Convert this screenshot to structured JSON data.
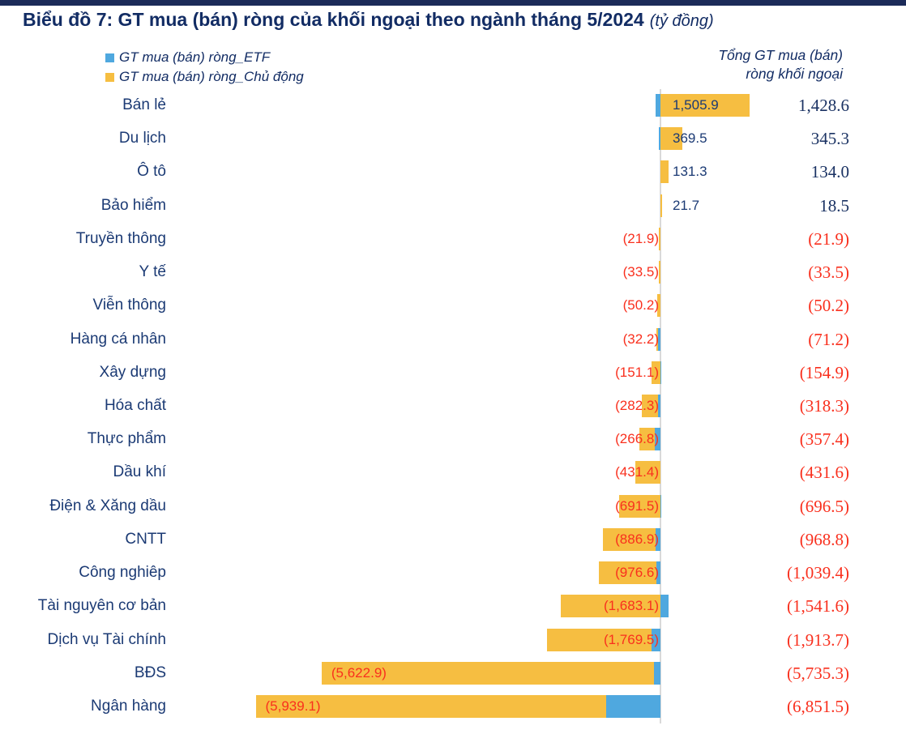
{
  "page": {
    "topbar_color": "#1C2B59"
  },
  "header": {
    "title": "Biểu đồ 7: GT mua (bán) ròng của khối ngoại theo ngành tháng 5/2024",
    "unit_suffix": "(tỷ đồng)"
  },
  "totals_header": {
    "line1": "Tổng GT mua (bán)",
    "line2": "ròng khối ngoại"
  },
  "chart_data": {
    "type": "bar",
    "orientation": "horizontal",
    "stacked": true,
    "value_unit": "tỷ đồng",
    "title": "GT mua (bán) ròng của khối ngoại theo ngành tháng 5/2024",
    "axis": {
      "zero_line": true,
      "gridlines": false,
      "xlim": [
        -7000,
        1700
      ]
    },
    "legend_position": "top-left",
    "categories": [
      "Bán lẻ",
      "Du lịch",
      "Ô tô",
      "Bảo hiểm",
      "Truyền thông",
      "Y tế",
      "Viễn thông",
      "Hàng cá nhân",
      "Xây dựng",
      "Hóa chất",
      "Thực phẩm",
      "Dầu khí",
      "Điện & Xăng dầu",
      "CNTT",
      "Công nghiêp",
      "Tài nguyên cơ bản",
      "Dịch vụ Tài chính",
      "BĐS",
      "Ngân hàng"
    ],
    "series": [
      {
        "name": "GT mua (bán) ròng_ETF",
        "color": "#4FA8DF",
        "values": [
          -77.3,
          -24.2,
          2.7,
          -3.2,
          0,
          0,
          0,
          -39.0,
          -3.8,
          -36.0,
          -90.6,
          -0.2,
          -5.0,
          -81.9,
          -62.8,
          141.5,
          -144.2,
          -112.4,
          -912.4
        ]
      },
      {
        "name": "GT mua (bán) ròng_Chủ động",
        "color": "#F6BE41",
        "values": [
          1505.9,
          369.5,
          131.3,
          21.7,
          -21.9,
          -33.5,
          -50.2,
          -32.2,
          -151.1,
          -282.3,
          -266.8,
          -431.4,
          -691.5,
          -886.9,
          -976.6,
          -1683.1,
          -1769.5,
          -5622.9,
          -5939.1
        ]
      }
    ],
    "bar_labels": [
      "1,505.9",
      "369.5",
      "131.3",
      "21.7",
      "(21.9)",
      "(33.5)",
      "(50.2)",
      "(32.2)",
      "(151.1)",
      "(282.3)",
      "(266.8)",
      "(431.4)",
      "(691.5)",
      "(886.9)",
      "(976.6)",
      "(1,683.1)",
      "(1,769.5)",
      "(5,622.9)",
      "(5,939.1)"
    ],
    "totals": [
      "1,428.6",
      "345.3",
      "134.0",
      "18.5",
      "(21.9)",
      "(33.5)",
      "(50.2)",
      "(71.2)",
      "(154.9)",
      "(318.3)",
      "(357.4)",
      "(431.6)",
      "(696.5)",
      "(968.8)",
      "(1,039.4)",
      "(1,541.6)",
      "(1,913.7)",
      "(5,735.3)",
      "(6,851.5)"
    ],
    "totals_numeric": [
      1428.6,
      345.3,
      134.0,
      18.5,
      -21.9,
      -33.5,
      -50.2,
      -71.2,
      -154.9,
      -318.3,
      -357.4,
      -431.6,
      -696.5,
      -968.8,
      -1039.4,
      -1541.6,
      -1913.7,
      -5735.3,
      -6851.5
    ],
    "colors": {
      "positive_text": "#1B3A74",
      "negative_text": "#F9301E",
      "total_positive_text": "#1A3263",
      "axis_line": "#D9D9D9"
    }
  }
}
